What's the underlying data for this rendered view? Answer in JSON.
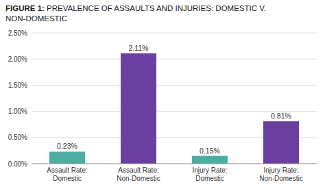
{
  "chart_data": {
    "type": "bar",
    "title": "FIGURE 1: PREVALENCE OF ASSAULTS AND INJURIES: DOMESTIC V.\nNON-DOMESTIC",
    "categories": [
      "Assault Rate:\nDomestic",
      "Assault Rate:\nNon-Domestic",
      "Injury Rate:\nDomestic",
      "Injury Rate:\nNon-Domestic"
    ],
    "values": [
      0.0023,
      0.0211,
      0.0015,
      0.0081
    ],
    "value_labels": [
      "0.23%",
      "2.11%",
      "0.15%",
      "0.81%"
    ],
    "colors": [
      "#4DADA0",
      "#6B3FA0",
      "#4DADA0",
      "#6B3FA0"
    ],
    "ylim": [
      0,
      0.025
    ],
    "yticks": [
      {
        "value": 0.0,
        "label": "0.00%"
      },
      {
        "value": 0.005,
        "label": "0.50%"
      },
      {
        "value": 0.01,
        "label": "1.00%"
      },
      {
        "value": 0.015,
        "label": "1.50%"
      },
      {
        "value": 0.02,
        "label": "2.00%"
      },
      {
        "value": 0.025,
        "label": "2.50%"
      }
    ],
    "grid": true,
    "data_labels": true
  }
}
